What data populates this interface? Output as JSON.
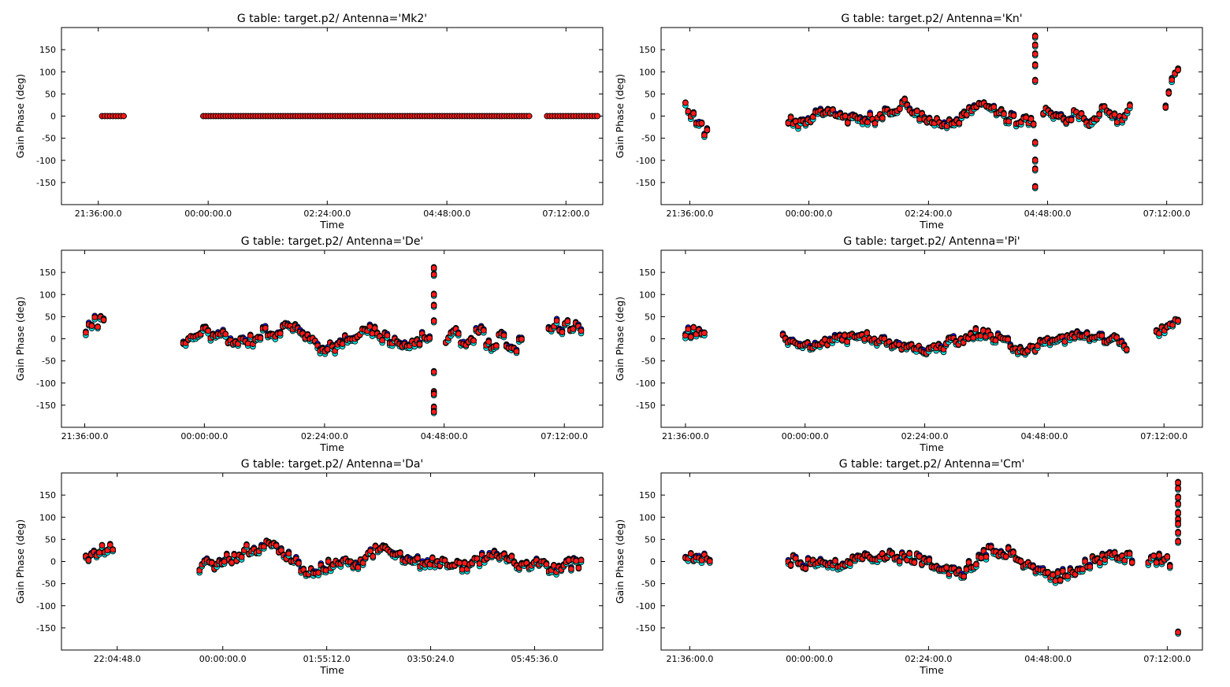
{
  "colors": {
    "frame": "#000000",
    "series": [
      "#00e5e5",
      "#1a1aff",
      "#2e8b2e",
      "#ff1a1a"
    ]
  },
  "chart_data": [
    {
      "type": "scatter",
      "title": "G table: target.p2/      Antenna='Mk2'",
      "xlabel": "Time",
      "ylabel": "Gain Phase (deg)",
      "ylim": [
        -200,
        200
      ],
      "yticks": [
        150,
        100,
        50,
        0,
        -50,
        -100,
        -150
      ],
      "xticks": [
        {
          "v": 0.068,
          "label": "21:36:00.0"
        },
        {
          "v": 0.271,
          "label": "00:00:00.0"
        },
        {
          "v": 0.491,
          "label": "02:24:00.0"
        },
        {
          "v": 0.712,
          "label": "04:48:00.0"
        },
        {
          "v": 0.932,
          "label": "07:12:00.0"
        }
      ],
      "segments": [
        {
          "x0": 0.075,
          "x1": 0.115,
          "baseline": 0,
          "amp": 0,
          "seed": 3
        },
        {
          "x0": 0.262,
          "x1": 0.864,
          "baseline": 0,
          "amp": 0,
          "seed": 7
        },
        {
          "x0": 0.897,
          "x1": 0.99,
          "baseline": 0,
          "amp": 0,
          "seed": 11
        }
      ],
      "spikes": []
    },
    {
      "type": "scatter",
      "title": "G table: target.p2/      Antenna='Kn'",
      "xlabel": "Time",
      "ylabel": "Gain Phase (deg)",
      "ylim": [
        -200,
        200
      ],
      "yticks": [
        150,
        100,
        50,
        0,
        -50,
        -100,
        -150
      ],
      "xticks": [
        {
          "v": 0.053,
          "label": "21:36:00.0"
        },
        {
          "v": 0.273,
          "label": "00:00:00.0"
        },
        {
          "v": 0.494,
          "label": "02:24:00.0"
        },
        {
          "v": 0.714,
          "label": "04:48:00.0"
        },
        {
          "v": 0.934,
          "label": "07:12:00.0"
        }
      ],
      "segments": [
        {
          "x0": 0.045,
          "x1": 0.085,
          "baseline": 20,
          "amp": 18,
          "seed": 13,
          "trend": -60
        },
        {
          "x0": 0.235,
          "x1": 0.688,
          "baseline": 0,
          "amp": 25,
          "seed": 17
        },
        {
          "x0": 0.706,
          "x1": 0.866,
          "baseline": 0,
          "amp": 22,
          "seed": 19
        },
        {
          "x0": 0.932,
          "x1": 0.955,
          "baseline": 20,
          "amp": 20,
          "seed": 23,
          "trend": 90
        }
      ],
      "spikes": [
        {
          "x": 0.691,
          "values": [
            180,
            160,
            140,
            115,
            80,
            -60,
            -100,
            -120,
            -160
          ]
        }
      ]
    },
    {
      "type": "scatter",
      "title": "G table: target.p2/      Antenna='De'",
      "xlabel": "Time",
      "ylabel": "Gain Phase (deg)",
      "ylim": [
        -200,
        200
      ],
      "yticks": [
        150,
        100,
        50,
        0,
        -50,
        -100,
        -150
      ],
      "xticks": [
        {
          "v": 0.043,
          "label": "21:36:00.0"
        },
        {
          "v": 0.264,
          "label": "00:00:00.0"
        },
        {
          "v": 0.486,
          "label": "02:24:00.0"
        },
        {
          "v": 0.707,
          "label": "04:48:00.0"
        },
        {
          "v": 0.929,
          "label": "07:12:00.0"
        }
      ],
      "segments": [
        {
          "x0": 0.045,
          "x1": 0.078,
          "baseline": 15,
          "amp": 18,
          "seed": 29,
          "trend": 30
        },
        {
          "x0": 0.225,
          "x1": 0.68,
          "baseline": 0,
          "amp": 28,
          "seed": 31
        },
        {
          "x0": 0.71,
          "x1": 0.85,
          "baseline": -10,
          "amp": 30,
          "seed": 37
        },
        {
          "x0": 0.9,
          "x1": 0.96,
          "baseline": 25,
          "amp": 18,
          "seed": 41
        }
      ],
      "spikes": [
        {
          "x": 0.688,
          "values": [
            160,
            145,
            100,
            75,
            40,
            -75,
            -120,
            -125,
            -155,
            -165
          ]
        }
      ]
    },
    {
      "type": "scatter",
      "title": "G table: target.p2/      Antenna='Pi'",
      "xlabel": "Time",
      "ylabel": "Gain Phase (deg)",
      "ylim": [
        -200,
        200
      ],
      "yticks": [
        150,
        100,
        50,
        0,
        -50,
        -100,
        -150
      ],
      "xticks": [
        {
          "v": 0.045,
          "label": "21:36:00.0"
        },
        {
          "v": 0.266,
          "label": "00:00:00.0"
        },
        {
          "v": 0.487,
          "label": "02:24:00.0"
        },
        {
          "v": 0.708,
          "label": "04:48:00.0"
        },
        {
          "v": 0.929,
          "label": "07:12:00.0"
        }
      ],
      "segments": [
        {
          "x0": 0.045,
          "x1": 0.08,
          "baseline": 10,
          "amp": 14,
          "seed": 43
        },
        {
          "x0": 0.225,
          "x1": 0.86,
          "baseline": -5,
          "amp": 22,
          "seed": 47
        },
        {
          "x0": 0.915,
          "x1": 0.955,
          "baseline": 15,
          "amp": 14,
          "seed": 53,
          "trend": 35
        }
      ],
      "spikes": []
    },
    {
      "type": "scatter",
      "title": "G table: target.p2/      Antenna='Da'",
      "xlabel": "Time",
      "ylabel": "Gain Phase (deg)",
      "ylim": [
        -200,
        200
      ],
      "yticks": [
        150,
        100,
        50,
        0,
        -50,
        -100,
        -150
      ],
      "xticks": [
        {
          "v": 0.103,
          "label": "22:04:48.0"
        },
        {
          "v": 0.298,
          "label": "00:00:00.0"
        },
        {
          "v": 0.49,
          "label": "01:55:12.0"
        },
        {
          "v": 0.682,
          "label": "03:50:24.0"
        },
        {
          "v": 0.874,
          "label": "05:45:36.0"
        }
      ],
      "segments": [
        {
          "x0": 0.045,
          "x1": 0.095,
          "baseline": 10,
          "amp": 14,
          "seed": 59,
          "trend": 20
        },
        {
          "x0": 0.255,
          "x1": 0.96,
          "baseline": 0,
          "amp": 28,
          "seed": 61
        }
      ],
      "spikes": []
    },
    {
      "type": "scatter",
      "title": "G table: target.p2/      Antenna='Cm'",
      "xlabel": "Time",
      "ylabel": "Gain Phase (deg)",
      "ylim": [
        -200,
        200
      ],
      "yticks": [
        150,
        100,
        50,
        0,
        -50,
        -100,
        -150
      ],
      "xticks": [
        {
          "v": 0.053,
          "label": "21:36:00.0"
        },
        {
          "v": 0.274,
          "label": "00:00:00.0"
        },
        {
          "v": 0.494,
          "label": "02:24:00.0"
        },
        {
          "v": 0.715,
          "label": "04:48:00.0"
        },
        {
          "v": 0.935,
          "label": "07:12:00.0"
        }
      ],
      "segments": [
        {
          "x0": 0.045,
          "x1": 0.09,
          "baseline": 10,
          "amp": 16,
          "seed": 67
        },
        {
          "x0": 0.235,
          "x1": 0.87,
          "baseline": 0,
          "amp": 30,
          "seed": 71
        },
        {
          "x0": 0.9,
          "x1": 0.94,
          "baseline": 0,
          "amp": 16,
          "seed": 73
        }
      ],
      "spikes": [
        {
          "x": 0.955,
          "values": [
            178,
            165,
            145,
            130,
            110,
            95,
            85,
            65,
            45,
            -160
          ]
        }
      ]
    }
  ]
}
